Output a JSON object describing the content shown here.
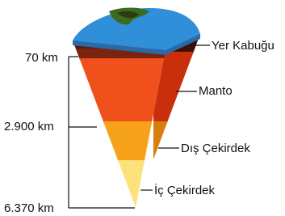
{
  "layers": [
    {
      "label": "Yer Kabuğu"
    },
    {
      "label": "Manto"
    },
    {
      "label": "Dış Çekirdek"
    },
    {
      "label": "İç Çekirdek"
    }
  ],
  "depths": [
    "70 km",
    "2.900 km",
    "6.370 km"
  ]
}
